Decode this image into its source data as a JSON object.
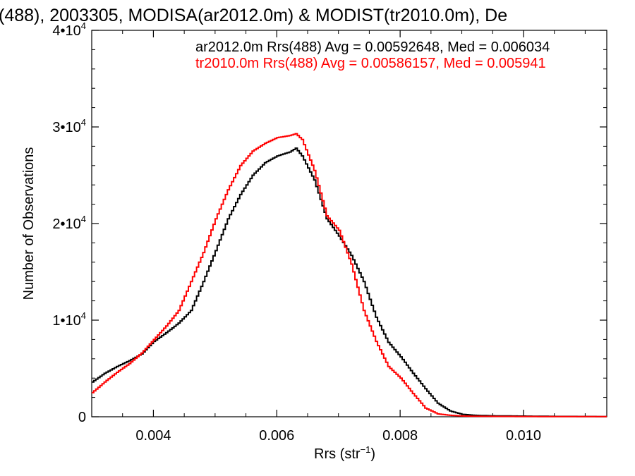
{
  "chart_data": {
    "type": "line",
    "title": "(488), 2003305, MODISA(ar2012.0m) & MODIST(tr2010.0m), De",
    "xlabel": "Rrs (str",
    "xlabel_sup": "−1",
    "xlabel_close": ")",
    "ylabel": "Number of Observations",
    "xlim": [
      0.003,
      0.01135
    ],
    "ylim": [
      0,
      40000
    ],
    "x_ticks": [
      {
        "value": 0.004,
        "label": "0.004"
      },
      {
        "value": 0.006,
        "label": "0.006"
      },
      {
        "value": 0.008,
        "label": "0.008"
      },
      {
        "value": 0.01,
        "label": "0.010"
      }
    ],
    "y_ticks": [
      {
        "value": 0,
        "label": "0",
        "sup": ""
      },
      {
        "value": 10000,
        "label": "1•10",
        "sup": "4"
      },
      {
        "value": 20000,
        "label": "2•10",
        "sup": "4"
      },
      {
        "value": 30000,
        "label": "3•10",
        "sup": "4"
      },
      {
        "value": 40000,
        "label": "4•10",
        "sup": "4"
      }
    ],
    "grid": false,
    "legend_placement": "top-right",
    "series": [
      {
        "name": "ar2012.0m Rrs(488) Avg = 0.00592648, Med = 0.006034",
        "color": "#000000",
        "x": [
          0.003,
          0.0032,
          0.0034,
          0.0036,
          0.0038,
          0.004,
          0.0042,
          0.0044,
          0.0046,
          0.0048,
          0.005,
          0.0052,
          0.0054,
          0.0056,
          0.0058,
          0.006,
          0.0062,
          0.0063,
          0.0064,
          0.0066,
          0.0068,
          0.007,
          0.0072,
          0.0074,
          0.0076,
          0.0078,
          0.008,
          0.0082,
          0.0084,
          0.0086,
          0.0088,
          0.009,
          0.0092,
          0.0095,
          0.01,
          0.0105,
          0.011,
          0.01135
        ],
        "values": [
          3600,
          4500,
          5200,
          5800,
          6500,
          7800,
          8700,
          9700,
          11000,
          14000,
          17200,
          20500,
          23000,
          25000,
          26300,
          27000,
          27400,
          27800,
          27000,
          24500,
          20500,
          18700,
          16700,
          14000,
          10300,
          7700,
          6200,
          4500,
          2900,
          1400,
          600,
          250,
          150,
          100,
          70,
          40,
          30,
          20
        ]
      },
      {
        "name": "tr2010.0m Rrs(488) Avg = 0.00586157, Med = 0.005941",
        "color": "#ff0000",
        "x": [
          0.003,
          0.0032,
          0.0034,
          0.0036,
          0.0038,
          0.004,
          0.0042,
          0.0044,
          0.0046,
          0.0048,
          0.005,
          0.0052,
          0.0054,
          0.0056,
          0.0058,
          0.006,
          0.0062,
          0.0063,
          0.0064,
          0.0066,
          0.0068,
          0.007,
          0.0072,
          0.0074,
          0.0076,
          0.0078,
          0.008,
          0.0082,
          0.0084,
          0.0086,
          0.0088,
          0.009,
          0.0092,
          0.0095,
          0.01,
          0.0105,
          0.011,
          0.01135
        ],
        "values": [
          2500,
          3600,
          4600,
          5500,
          6600,
          8000,
          9400,
          11000,
          14000,
          17000,
          20500,
          23500,
          26000,
          27500,
          28300,
          28900,
          29100,
          29300,
          28700,
          25500,
          20800,
          19300,
          15800,
          11000,
          7800,
          5200,
          4000,
          2400,
          900,
          300,
          150,
          80,
          50,
          40,
          30,
          20,
          20,
          15
        ]
      }
    ]
  }
}
